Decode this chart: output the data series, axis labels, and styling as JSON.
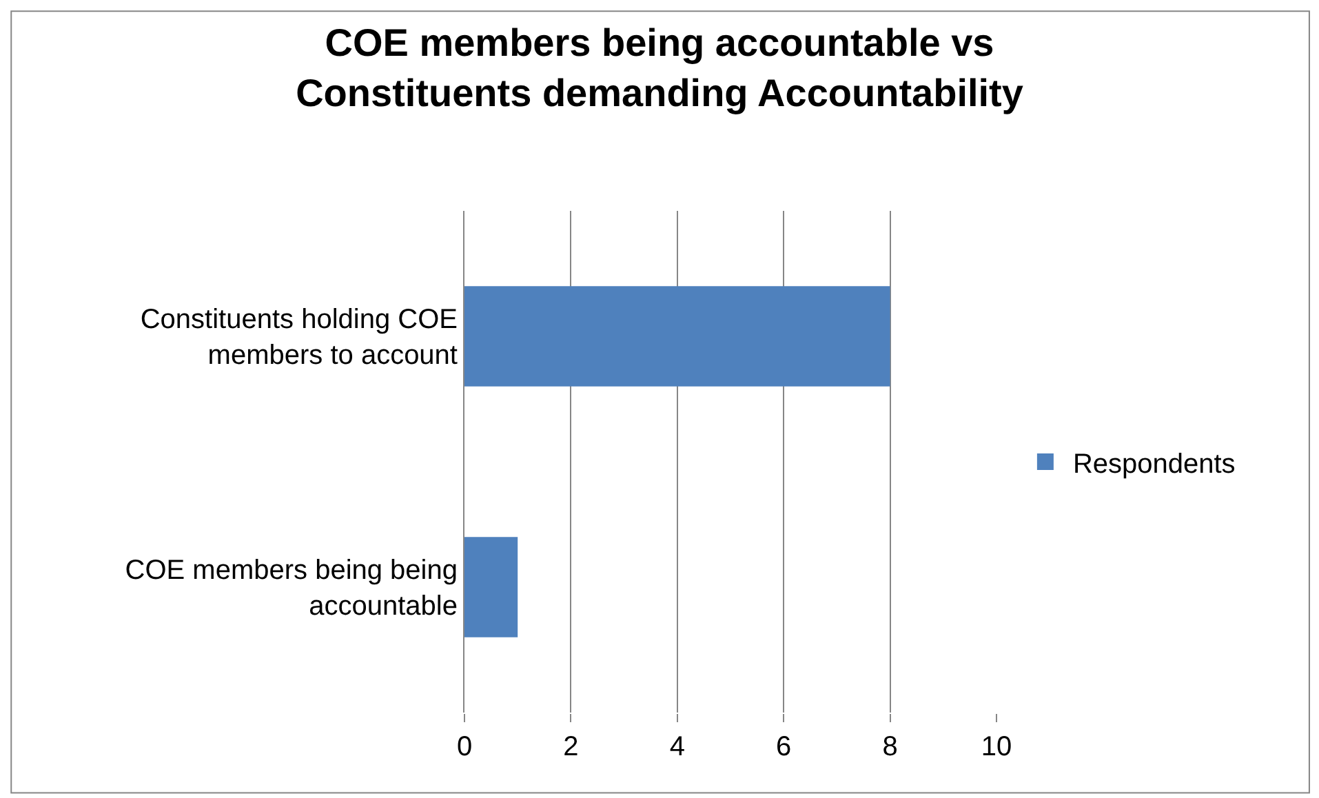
{
  "chart_data": {
    "type": "bar",
    "orientation": "horizontal",
    "title": "COE members being accountable vs Constituents demanding Accountability",
    "categories": [
      "Constituents holding COE members to account",
      "COE members being being accountable"
    ],
    "series": [
      {
        "name": "Respondents",
        "color": "#4f81bd",
        "values": [
          8,
          1
        ]
      }
    ],
    "xlim": [
      0,
      10
    ],
    "xticks": [
      0,
      2,
      4,
      6,
      8,
      10
    ],
    "grid": "x",
    "legend": "right"
  }
}
